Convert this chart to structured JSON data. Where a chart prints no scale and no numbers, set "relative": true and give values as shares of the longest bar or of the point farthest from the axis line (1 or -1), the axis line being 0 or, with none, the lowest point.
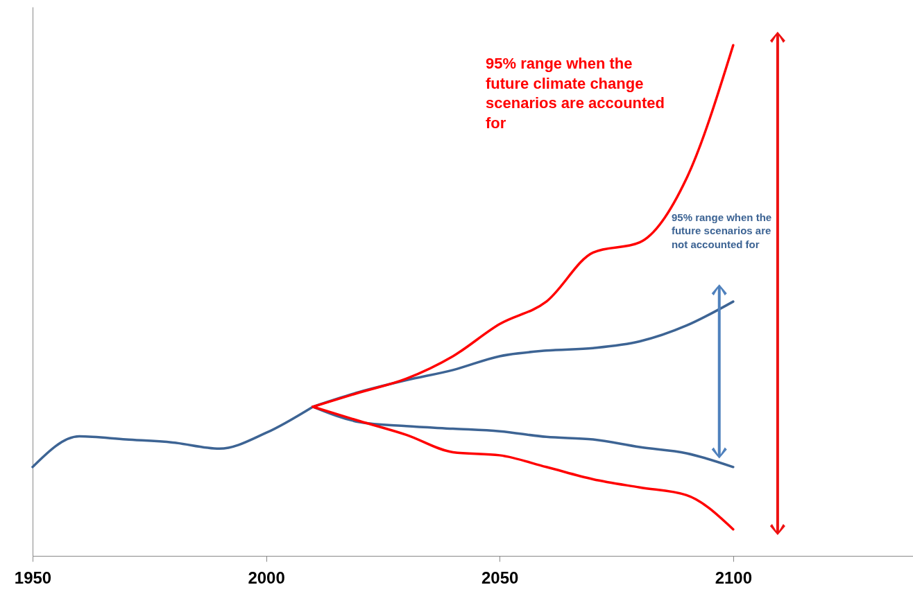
{
  "chart_data": {
    "type": "line",
    "relative": true,
    "xlim": [
      1950,
      2138.5
    ],
    "xticks": [
      1950,
      2000,
      2050,
      2100
    ],
    "grid": false,
    "legend": false,
    "line_style": "solid",
    "marker": "none",
    "series": [
      {
        "color": "#3d6494",
        "x": [
          1950,
          1960,
          1970,
          1980,
          1990,
          2000,
          2010
        ],
        "values": [
          0.174,
          0.234,
          0.228,
          0.222,
          0.21,
          0.241,
          0.292
        ]
      },
      {
        "color": "#3d6494",
        "x": [
          2010,
          2020,
          2030,
          2040,
          2050,
          2060,
          2070,
          2080,
          2090,
          2100
        ],
        "values": [
          0.292,
          0.321,
          0.344,
          0.364,
          0.391,
          0.402,
          0.407,
          0.42,
          0.451,
          0.498
        ]
      },
      {
        "color": "#3d6494",
        "x": [
          2010,
          2020,
          2030,
          2040,
          2050,
          2060,
          2070,
          2080,
          2090,
          2100
        ],
        "values": [
          0.292,
          0.262,
          0.254,
          0.249,
          0.244,
          0.233,
          0.228,
          0.213,
          0.201,
          0.174
        ]
      },
      {
        "color": "#ff0000",
        "x": [
          2010,
          2020,
          2030,
          2040,
          2050,
          2060,
          2070,
          2080,
          2090,
          2100
        ],
        "values": [
          0.292,
          0.32,
          0.347,
          0.391,
          0.454,
          0.498,
          0.594,
          0.614,
          0.739,
          1
        ]
      },
      {
        "color": "#ff0000",
        "x": [
          2010,
          2020,
          2030,
          2040,
          2050,
          2060,
          2070,
          2080,
          2090,
          2100
        ],
        "values": [
          0.292,
          0.264,
          0.237,
          0.203,
          0.197,
          0.174,
          0.15,
          0.134,
          0.119,
          0.052
        ]
      }
    ],
    "annotations": [
      "95% range when the future climate change scenarios are accounted for",
      "95% range when the future scenarios are not accounted for"
    ]
  }
}
